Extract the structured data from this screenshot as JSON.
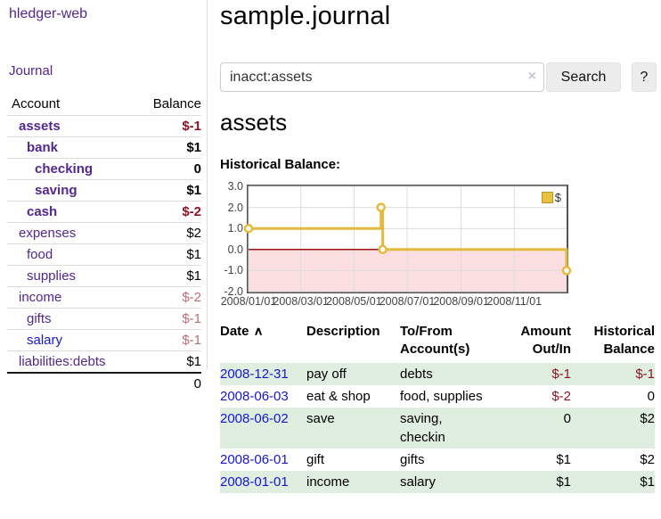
{
  "app": {
    "title": "hledger-web",
    "nav": {
      "journal": "Journal"
    }
  },
  "sidebar": {
    "header": {
      "account": "Account",
      "balance": "Balance"
    },
    "accounts": [
      {
        "name": "assets",
        "balance": "$-1",
        "depth": 1,
        "bold": true,
        "balance_style": "neg-strong",
        "link_color": "purple"
      },
      {
        "name": "bank",
        "balance": "$1",
        "depth": 2,
        "bold": true,
        "balance_style": "",
        "link_color": "purple"
      },
      {
        "name": "checking",
        "balance": "0",
        "depth": 3,
        "bold": true,
        "balance_style": "",
        "link_color": "purple"
      },
      {
        "name": "saving",
        "balance": "$1",
        "depth": 3,
        "bold": true,
        "balance_style": "",
        "link_color": "purple"
      },
      {
        "name": "cash",
        "balance": "$-2",
        "depth": 2,
        "bold": true,
        "balance_style": "neg-strong",
        "link_color": "purple"
      },
      {
        "name": "expenses",
        "balance": "$2",
        "depth": 1,
        "bold": false,
        "balance_style": "",
        "link_color": "purple"
      },
      {
        "name": "food",
        "balance": "$1",
        "depth": 2,
        "bold": false,
        "balance_style": "",
        "link_color": "purple"
      },
      {
        "name": "supplies",
        "balance": "$1",
        "depth": 2,
        "bold": false,
        "balance_style": "",
        "link_color": "purple"
      },
      {
        "name": "income",
        "balance": "$-2",
        "depth": 1,
        "bold": false,
        "balance_style": "neg-soft",
        "link_color": "purple"
      },
      {
        "name": "gifts",
        "balance": "$-1",
        "depth": 2,
        "bold": false,
        "balance_style": "neg-soft",
        "link_color": "purple"
      },
      {
        "name": "salary",
        "balance": "$-1",
        "depth": 2,
        "bold": false,
        "balance_style": "neg-soft",
        "link_color": "blue"
      },
      {
        "name": "liabilities:debts",
        "balance": "$1",
        "depth": 1,
        "bold": false,
        "balance_style": "",
        "link_color": "purple"
      }
    ],
    "total": "0"
  },
  "main": {
    "title": "sample.journal",
    "search": {
      "value": "inacct:assets",
      "clear_icon": "×",
      "button": "Search",
      "help_button": "?"
    },
    "account_heading": "assets",
    "chart_label": "Historical Balance:"
  },
  "chart_data": {
    "type": "line",
    "title": "Historical Balance",
    "step": true,
    "series": [
      {
        "name": "$",
        "color": "#e4ba3d",
        "points": [
          [
            "2008/01/01",
            1
          ],
          [
            "2008/06/01",
            2
          ],
          [
            "2008/06/03",
            0
          ],
          [
            "2008/12/31",
            -1
          ]
        ]
      }
    ],
    "x_ticks": [
      "2008/01/01",
      "2008/03/01",
      "2008/05/01",
      "2008/07/01",
      "2008/09/01",
      "2008/11/01"
    ],
    "y_ticks": [
      3.0,
      2.0,
      1.0,
      0.0,
      -1.0,
      -2.0
    ],
    "xlim": [
      "2008/01/01",
      "2008/12/31"
    ],
    "ylim": [
      -2,
      3
    ],
    "grid": true,
    "legend_position": "top-right",
    "legend_label": "$",
    "colors": {
      "line": "#e4ba3d",
      "marker_fill": "#ffffff",
      "grid": "#dcdcdc",
      "border": "#545454",
      "zero_line": "#a01010",
      "negative_fill": "#fbdfe0"
    }
  },
  "table": {
    "headers": [
      "Date",
      "Description",
      "To/From Account(s)",
      "Amount Out/In",
      "Historical Balance"
    ],
    "sort_icon": "∧",
    "rows": [
      {
        "date": "2008-12-31",
        "description": "pay off",
        "to_from": "debts",
        "amount": "$-1",
        "amount_negative": true,
        "balance": "$-1",
        "balance_negative": true
      },
      {
        "date": "2008-06-03",
        "description": "eat & shop",
        "to_from": "food, supplies",
        "amount": "$-2",
        "amount_negative": true,
        "balance": "0",
        "balance_negative": false
      },
      {
        "date": "2008-06-02",
        "description": "save",
        "to_from": "saving,\ncheckin",
        "amount": "0",
        "amount_negative": false,
        "balance": "$2",
        "balance_negative": false
      },
      {
        "date": "2008-06-01",
        "description": "gift",
        "to_from": "gifts",
        "amount": "$1",
        "amount_negative": false,
        "balance": "$2",
        "balance_negative": false
      },
      {
        "date": "2008-01-01",
        "description": "income",
        "to_from": "salary",
        "amount": "$1",
        "amount_negative": false,
        "balance": "$1",
        "balance_negative": false
      }
    ]
  }
}
